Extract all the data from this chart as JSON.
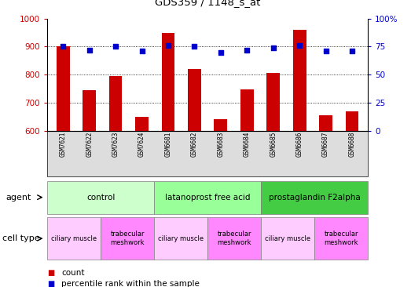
{
  "title": "GDS359 / 1148_s_at",
  "samples": [
    "GSM7621",
    "GSM7622",
    "GSM7623",
    "GSM7624",
    "GSM6681",
    "GSM6682",
    "GSM6683",
    "GSM6684",
    "GSM6685",
    "GSM6686",
    "GSM6687",
    "GSM6688"
  ],
  "counts": [
    900,
    745,
    795,
    650,
    950,
    820,
    640,
    748,
    805,
    960,
    655,
    668
  ],
  "percentiles": [
    75,
    72,
    75,
    71,
    76,
    75,
    70,
    72,
    74,
    76,
    71,
    71
  ],
  "ymin": 600,
  "ymax": 1000,
  "yticks": [
    600,
    700,
    800,
    900,
    1000
  ],
  "y2min": 0,
  "y2max": 100,
  "y2ticks": [
    0,
    25,
    50,
    75,
    100
  ],
  "y2ticklabels": [
    "0",
    "25",
    "50",
    "75",
    "100%"
  ],
  "bar_color": "#cc0000",
  "dot_color": "#0000cc",
  "grid_color": "#000000",
  "agents": [
    {
      "label": "control",
      "start": 0,
      "end": 4,
      "color": "#ccffcc"
    },
    {
      "label": "latanoprost free acid",
      "start": 4,
      "end": 8,
      "color": "#99ff99"
    },
    {
      "label": "prostaglandin F2alpha",
      "start": 8,
      "end": 12,
      "color": "#44cc44"
    }
  ],
  "cell_types": [
    {
      "label": "ciliary muscle",
      "start": 0,
      "end": 2,
      "color": "#ffccff"
    },
    {
      "label": "trabecular\nmeshwork",
      "start": 2,
      "end": 4,
      "color": "#ff88ff"
    },
    {
      "label": "ciliary muscle",
      "start": 4,
      "end": 6,
      "color": "#ffccff"
    },
    {
      "label": "trabecular\nmeshwork",
      "start": 6,
      "end": 8,
      "color": "#ff88ff"
    },
    {
      "label": "ciliary muscle",
      "start": 8,
      "end": 10,
      "color": "#ffccff"
    },
    {
      "label": "trabecular\nmeshwork",
      "start": 10,
      "end": 12,
      "color": "#ff88ff"
    }
  ],
  "legend_count_label": "count",
  "legend_percentile_label": "percentile rank within the sample",
  "agent_label": "agent",
  "celltype_label": "cell type",
  "bar_width": 0.5,
  "bar_color_red": "#cc0000",
  "y2label_color": "#0000cc",
  "xlabel_color": "#cc0000"
}
